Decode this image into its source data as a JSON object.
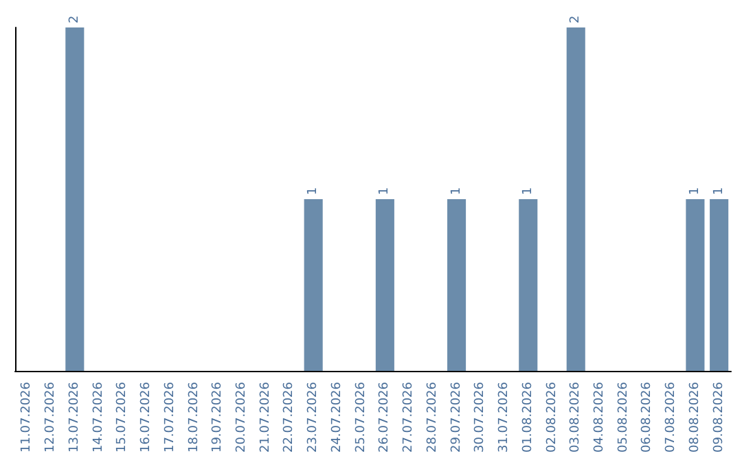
{
  "chart_data": {
    "type": "bar",
    "categories": [
      "11.07.2026",
      "12.07.2026",
      "13.07.2026",
      "14.07.2026",
      "15.07.2026",
      "16.07.2026",
      "17.07.2026",
      "18.07.2026",
      "19.07.2026",
      "20.07.2026",
      "21.07.2026",
      "22.07.2026",
      "23.07.2026",
      "24.07.2026",
      "25.07.2026",
      "26.07.2026",
      "27.07.2026",
      "28.07.2026",
      "29.07.2026",
      "30.07.2026",
      "31.07.2026",
      "01.08.2026",
      "02.08.2026",
      "03.08.2026",
      "04.08.2026",
      "05.08.2026",
      "06.08.2026",
      "07.08.2026",
      "08.08.2026",
      "09.08.2026"
    ],
    "values": [
      0,
      0,
      2,
      0,
      0,
      0,
      0,
      0,
      0,
      0,
      0,
      0,
      1,
      0,
      0,
      1,
      0,
      0,
      1,
      0,
      0,
      1,
      0,
      2,
      0,
      0,
      0,
      0,
      1,
      1
    ],
    "value_labels": [
      null,
      null,
      "2",
      null,
      null,
      null,
      null,
      null,
      null,
      null,
      null,
      null,
      "1",
      null,
      null,
      "1",
      null,
      null,
      "1",
      null,
      null,
      "1",
      null,
      "2",
      null,
      null,
      null,
      null,
      "1",
      "1"
    ],
    "color": "#6b8cab",
    "ylim": [
      0,
      2
    ],
    "tick_labels": "x",
    "grid": false
  }
}
